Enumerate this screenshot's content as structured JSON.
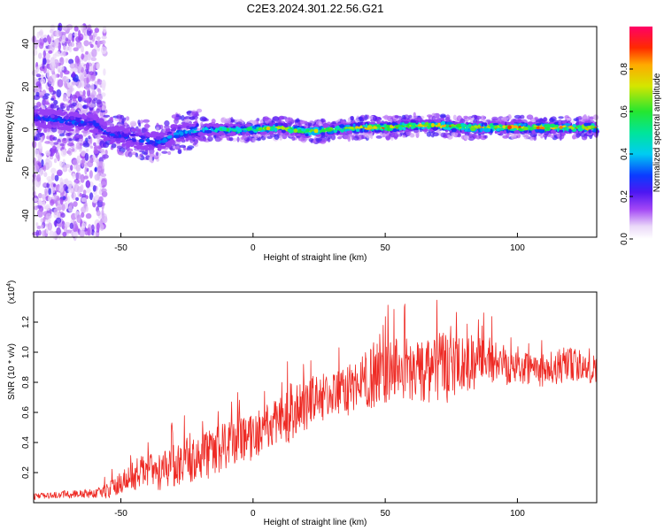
{
  "title": "C2E3.2024.301.22.56.G21",
  "chart_data": [
    {
      "type": "heatmap",
      "xlabel": "Height of straight line (km)",
      "ylabel": "Frequency (Hz)",
      "xlim": [
        -83,
        130
      ],
      "ylim": [
        -50,
        48
      ],
      "xticks": [
        -50,
        0,
        50,
        100
      ],
      "yticks": [
        -40,
        -20,
        0,
        20,
        40
      ],
      "grid": false,
      "colorbar": {
        "label": "Normalized spectral amplitude",
        "range": [
          0,
          1
        ],
        "ticks": [
          0.0,
          0.2,
          0.4,
          0.6,
          0.8
        ],
        "tick_labels": [
          "0.0",
          "0.2",
          "0.4",
          "0.6",
          "0.8"
        ]
      },
      "ridge": {
        "x": [
          -83,
          -70,
          -60,
          -55,
          -50,
          -45,
          -40,
          -35,
          -30,
          -25,
          -20,
          -10,
          0,
          10,
          20,
          30,
          40,
          50,
          60,
          70,
          80,
          90,
          100,
          110,
          120,
          130
        ],
        "y": [
          6,
          4,
          3,
          -2,
          -3,
          -4,
          -5,
          -6,
          -2,
          -1,
          0,
          0,
          0,
          1,
          -1,
          0,
          1,
          1,
          2,
          2,
          1,
          1,
          1,
          1,
          1,
          1
        ],
        "amplitude": [
          0.3,
          0.35,
          0.3,
          0.3,
          0.3,
          0.35,
          0.35,
          0.35,
          0.4,
          0.45,
          0.5,
          0.6,
          0.7,
          0.75,
          0.7,
          0.75,
          0.85,
          0.85,
          0.85,
          0.85,
          0.85,
          0.9,
          0.9,
          0.9,
          0.85,
          0.85
        ]
      }
    },
    {
      "type": "line",
      "xlabel": "Height of straight line (km)",
      "ylabel": "SNR (10 * v/v)",
      "y_scale_label": "(x10^4)",
      "xlim": [
        -83,
        130
      ],
      "ylim": [
        0,
        1.4
      ],
      "xticks": [
        -50,
        0,
        50,
        100
      ],
      "yticks": [
        0.2,
        0.4,
        0.6,
        0.8,
        1.0,
        1.2
      ],
      "ytick_labels": [
        "0.2",
        "0.4",
        "0.6",
        "0.8",
        "1.0",
        "1.2"
      ],
      "color": "#ee2a24",
      "grid": false,
      "series": [
        {
          "x": [
            -83,
            -75,
            -65,
            -60,
            -55,
            -50,
            -45,
            -40,
            -35,
            -30,
            -25,
            -20,
            -15,
            -10,
            -5,
            0,
            5,
            10,
            15,
            20,
            25,
            30,
            35,
            40,
            45,
            50,
            55,
            60,
            65,
            70,
            75,
            80,
            85,
            90,
            95,
            100,
            105,
            110,
            115,
            120,
            125,
            130
          ],
          "values": [
            0.04,
            0.05,
            0.06,
            0.06,
            0.08,
            0.13,
            0.18,
            0.22,
            0.2,
            0.25,
            0.28,
            0.3,
            0.33,
            0.38,
            0.42,
            0.44,
            0.5,
            0.55,
            0.58,
            0.66,
            0.7,
            0.72,
            0.73,
            0.8,
            0.85,
            0.85,
            0.9,
            0.88,
            0.85,
            0.9,
            0.88,
            0.9,
            0.95,
            0.95,
            0.93,
            0.92,
            0.9,
            0.88,
            0.9,
            0.92,
            0.9,
            0.88
          ],
          "spread": [
            0.02,
            0.02,
            0.03,
            0.03,
            0.05,
            0.08,
            0.1,
            0.12,
            0.12,
            0.14,
            0.15,
            0.16,
            0.16,
            0.16,
            0.15,
            0.16,
            0.16,
            0.16,
            0.18,
            0.18,
            0.16,
            0.15,
            0.16,
            0.18,
            0.22,
            0.22,
            0.22,
            0.2,
            0.22,
            0.25,
            0.22,
            0.2,
            0.18,
            0.15,
            0.15,
            0.12,
            0.12,
            0.12,
            0.12,
            0.12,
            0.1,
            0.1
          ]
        }
      ]
    }
  ]
}
